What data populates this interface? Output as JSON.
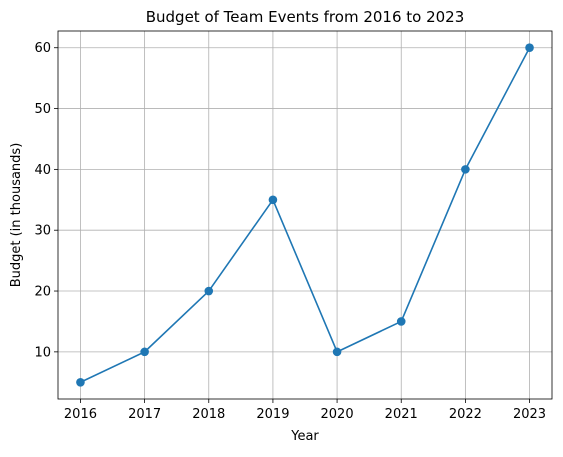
{
  "chart_data": {
    "type": "line",
    "title": "Budget of Team Events from 2016 to 2023",
    "xlabel": "Year",
    "ylabel": "Budget (in thousands)",
    "x": [
      2016,
      2017,
      2018,
      2019,
      2020,
      2021,
      2022,
      2023
    ],
    "series": [
      {
        "values": [
          5,
          10,
          20,
          35,
          10,
          15,
          40,
          60
        ]
      }
    ],
    "xlim": [
      2015.65,
      2023.35
    ],
    "ylim": [
      2.25,
      62.75
    ],
    "yticks": [
      10,
      20,
      30,
      40,
      50,
      60
    ],
    "grid": true,
    "marker": "circle",
    "line_color": "#1f77b4",
    "grid_color": "#b0b0b0"
  }
}
